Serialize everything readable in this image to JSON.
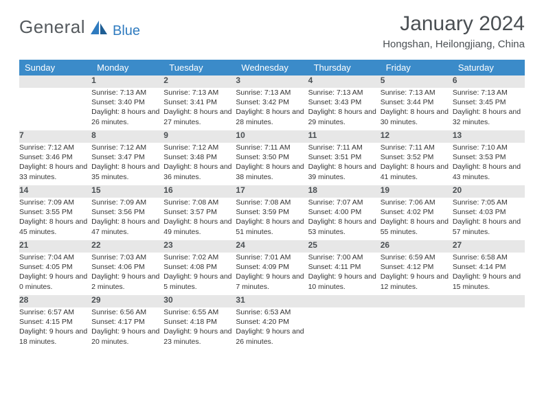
{
  "brand": {
    "word1": "General",
    "word2": "Blue"
  },
  "title": "January 2024",
  "location": "Hongshan, Heilongjiang, China",
  "colors": {
    "header_bg": "#3b8bc9",
    "header_text": "#ffffff",
    "daynum_bg": "#e7e7e7",
    "row_border": "#2f6fa8",
    "text": "#4a4f53",
    "logo_gray": "#555a5e",
    "logo_blue": "#2f7bbf"
  },
  "day_headers": [
    "Sunday",
    "Monday",
    "Tuesday",
    "Wednesday",
    "Thursday",
    "Friday",
    "Saturday"
  ],
  "weeks": [
    [
      {
        "n": "",
        "txt": ""
      },
      {
        "n": "1",
        "txt": "Sunrise: 7:13 AM\nSunset: 3:40 PM\nDaylight: 8 hours and 26 minutes."
      },
      {
        "n": "2",
        "txt": "Sunrise: 7:13 AM\nSunset: 3:41 PM\nDaylight: 8 hours and 27 minutes."
      },
      {
        "n": "3",
        "txt": "Sunrise: 7:13 AM\nSunset: 3:42 PM\nDaylight: 8 hours and 28 minutes."
      },
      {
        "n": "4",
        "txt": "Sunrise: 7:13 AM\nSunset: 3:43 PM\nDaylight: 8 hours and 29 minutes."
      },
      {
        "n": "5",
        "txt": "Sunrise: 7:13 AM\nSunset: 3:44 PM\nDaylight: 8 hours and 30 minutes."
      },
      {
        "n": "6",
        "txt": "Sunrise: 7:13 AM\nSunset: 3:45 PM\nDaylight: 8 hours and 32 minutes."
      }
    ],
    [
      {
        "n": "7",
        "txt": "Sunrise: 7:12 AM\nSunset: 3:46 PM\nDaylight: 8 hours and 33 minutes."
      },
      {
        "n": "8",
        "txt": "Sunrise: 7:12 AM\nSunset: 3:47 PM\nDaylight: 8 hours and 35 minutes."
      },
      {
        "n": "9",
        "txt": "Sunrise: 7:12 AM\nSunset: 3:48 PM\nDaylight: 8 hours and 36 minutes."
      },
      {
        "n": "10",
        "txt": "Sunrise: 7:11 AM\nSunset: 3:50 PM\nDaylight: 8 hours and 38 minutes."
      },
      {
        "n": "11",
        "txt": "Sunrise: 7:11 AM\nSunset: 3:51 PM\nDaylight: 8 hours and 39 minutes."
      },
      {
        "n": "12",
        "txt": "Sunrise: 7:11 AM\nSunset: 3:52 PM\nDaylight: 8 hours and 41 minutes."
      },
      {
        "n": "13",
        "txt": "Sunrise: 7:10 AM\nSunset: 3:53 PM\nDaylight: 8 hours and 43 minutes."
      }
    ],
    [
      {
        "n": "14",
        "txt": "Sunrise: 7:09 AM\nSunset: 3:55 PM\nDaylight: 8 hours and 45 minutes."
      },
      {
        "n": "15",
        "txt": "Sunrise: 7:09 AM\nSunset: 3:56 PM\nDaylight: 8 hours and 47 minutes."
      },
      {
        "n": "16",
        "txt": "Sunrise: 7:08 AM\nSunset: 3:57 PM\nDaylight: 8 hours and 49 minutes."
      },
      {
        "n": "17",
        "txt": "Sunrise: 7:08 AM\nSunset: 3:59 PM\nDaylight: 8 hours and 51 minutes."
      },
      {
        "n": "18",
        "txt": "Sunrise: 7:07 AM\nSunset: 4:00 PM\nDaylight: 8 hours and 53 minutes."
      },
      {
        "n": "19",
        "txt": "Sunrise: 7:06 AM\nSunset: 4:02 PM\nDaylight: 8 hours and 55 minutes."
      },
      {
        "n": "20",
        "txt": "Sunrise: 7:05 AM\nSunset: 4:03 PM\nDaylight: 8 hours and 57 minutes."
      }
    ],
    [
      {
        "n": "21",
        "txt": "Sunrise: 7:04 AM\nSunset: 4:05 PM\nDaylight: 9 hours and 0 minutes."
      },
      {
        "n": "22",
        "txt": "Sunrise: 7:03 AM\nSunset: 4:06 PM\nDaylight: 9 hours and 2 minutes."
      },
      {
        "n": "23",
        "txt": "Sunrise: 7:02 AM\nSunset: 4:08 PM\nDaylight: 9 hours and 5 minutes."
      },
      {
        "n": "24",
        "txt": "Sunrise: 7:01 AM\nSunset: 4:09 PM\nDaylight: 9 hours and 7 minutes."
      },
      {
        "n": "25",
        "txt": "Sunrise: 7:00 AM\nSunset: 4:11 PM\nDaylight: 9 hours and 10 minutes."
      },
      {
        "n": "26",
        "txt": "Sunrise: 6:59 AM\nSunset: 4:12 PM\nDaylight: 9 hours and 12 minutes."
      },
      {
        "n": "27",
        "txt": "Sunrise: 6:58 AM\nSunset: 4:14 PM\nDaylight: 9 hours and 15 minutes."
      }
    ],
    [
      {
        "n": "28",
        "txt": "Sunrise: 6:57 AM\nSunset: 4:15 PM\nDaylight: 9 hours and 18 minutes."
      },
      {
        "n": "29",
        "txt": "Sunrise: 6:56 AM\nSunset: 4:17 PM\nDaylight: 9 hours and 20 minutes."
      },
      {
        "n": "30",
        "txt": "Sunrise: 6:55 AM\nSunset: 4:18 PM\nDaylight: 9 hours and 23 minutes."
      },
      {
        "n": "31",
        "txt": "Sunrise: 6:53 AM\nSunset: 4:20 PM\nDaylight: 9 hours and 26 minutes."
      },
      {
        "n": "",
        "txt": ""
      },
      {
        "n": "",
        "txt": ""
      },
      {
        "n": "",
        "txt": ""
      }
    ]
  ]
}
